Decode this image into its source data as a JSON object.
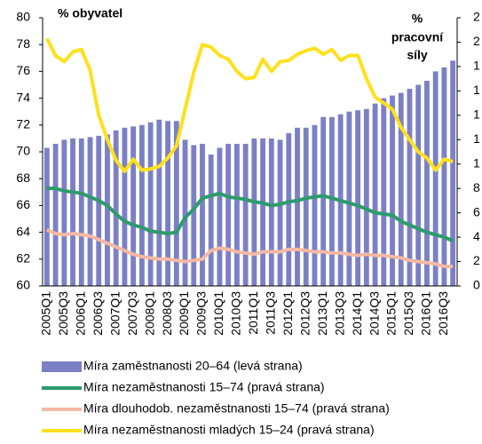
{
  "chart_data": {
    "type": "bar_line",
    "y_label": "% obyvatel",
    "y2_label": [
      "%",
      "pracovní",
      "síly"
    ],
    "categories": [
      "2005Q1",
      null,
      "2005Q3",
      null,
      "2006Q1",
      null,
      "2006Q3",
      null,
      "2007Q1",
      null,
      "2007Q3",
      null,
      "2008Q1",
      null,
      "2008Q3",
      null,
      "2009Q1",
      null,
      "2009Q3",
      null,
      "2010Q1",
      null,
      "2010Q3",
      null,
      "2011Q1",
      null,
      "2011Q3",
      null,
      "2012Q1",
      null,
      "2012Q3",
      null,
      "2013Q1",
      null,
      "2013Q3",
      null,
      "2014Q1",
      null,
      "2014Q3",
      null,
      "2015Q1",
      null,
      "2015Q3",
      null,
      "2016Q1",
      null,
      "2016Q3",
      null
    ],
    "ylim": [
      60,
      80
    ],
    "yticks": [
      60,
      62,
      64,
      66,
      68,
      70,
      72,
      74,
      76,
      78,
      80
    ],
    "y2lim": [
      0,
      22
    ],
    "y2ticks": [
      0,
      2,
      4,
      6,
      8,
      {
        "value": 10,
        "label": "1"
      },
      {
        "value": 12,
        "label": "1"
      },
      {
        "value": 14,
        "label": "1"
      },
      {
        "value": 16,
        "label": "1"
      },
      {
        "value": 18,
        "label": "1"
      },
      {
        "value": 20,
        "label": "2"
      },
      {
        "value": 22,
        "label": "2"
      }
    ],
    "series": [
      {
        "name": "Míra zaměstnanosti 20–64 (levá strana)",
        "type": "bar",
        "color": "#7b80c6",
        "values": [
          70.3,
          70.6,
          70.9,
          71.0,
          71.0,
          71.1,
          71.2,
          71.3,
          71.6,
          71.8,
          71.9,
          72.0,
          72.2,
          72.4,
          72.3,
          72.3,
          70.9,
          70.5,
          70.6,
          69.8,
          70.3,
          70.6,
          70.6,
          70.6,
          71.0,
          71.0,
          71.0,
          70.9,
          71.4,
          71.8,
          71.8,
          72.0,
          72.6,
          72.6,
          72.8,
          73.0,
          73.1,
          73.2,
          73.6,
          74.0,
          74.2,
          74.4,
          74.7,
          75.0,
          75.3,
          76.0,
          76.3,
          76.8
        ]
      },
      {
        "name": "Míra nezaměstnanosti 15–74 (pravá strana)",
        "type": "line",
        "axis": "y2",
        "color": "#2e9b6c",
        "values": [
          8.0,
          8.0,
          7.8,
          7.7,
          7.6,
          7.3,
          7.0,
          6.6,
          5.9,
          5.3,
          5.0,
          4.8,
          4.5,
          4.4,
          4.3,
          4.4,
          5.6,
          6.3,
          7.2,
          7.4,
          7.6,
          7.3,
          7.2,
          7.1,
          6.9,
          6.8,
          6.6,
          6.7,
          6.9,
          7.0,
          7.2,
          7.3,
          7.4,
          7.2,
          7.0,
          6.8,
          6.6,
          6.3,
          6.0,
          5.9,
          5.8,
          5.3,
          5.0,
          4.7,
          4.4,
          4.2,
          4.0,
          3.7
        ]
      },
      {
        "name": "Míra dlouhodob. nezaměstnanosti 15–74 (pravá strana)",
        "type": "line",
        "axis": "y2",
        "color": "#f5b8a2",
        "values": [
          4.6,
          4.3,
          4.2,
          4.3,
          4.2,
          4.1,
          3.8,
          3.5,
          3.2,
          2.9,
          2.6,
          2.4,
          2.3,
          2.2,
          2.2,
          2.1,
          2.0,
          2.1,
          2.2,
          2.9,
          3.1,
          3.0,
          2.8,
          2.7,
          2.6,
          2.8,
          2.8,
          2.8,
          3.0,
          3.0,
          2.9,
          2.8,
          2.8,
          2.7,
          2.7,
          2.6,
          2.5,
          2.6,
          2.5,
          2.5,
          2.4,
          2.3,
          2.1,
          2.0,
          1.9,
          1.8,
          1.6,
          1.6
        ]
      },
      {
        "name": "Míra nezaměstnanosti mladých 15–24 (pravá strana)",
        "type": "line",
        "axis": "y2",
        "color": "#ffe01c",
        "values": [
          20.3,
          18.9,
          18.4,
          19.2,
          19.4,
          17.7,
          14.0,
          12.0,
          10.3,
          9.4,
          10.4,
          9.5,
          9.6,
          9.8,
          10.5,
          11.5,
          14.5,
          17.5,
          19.8,
          19.6,
          18.9,
          18.6,
          17.6,
          17.0,
          17.1,
          18.6,
          17.6,
          18.4,
          18.5,
          19.0,
          19.3,
          19.5,
          19.0,
          19.4,
          18.5,
          18.9,
          18.9,
          17.0,
          15.5,
          15.0,
          14.5,
          13.0,
          12.0,
          11.0,
          10.5,
          9.5,
          10.4,
          10.2
        ]
      }
    ]
  }
}
